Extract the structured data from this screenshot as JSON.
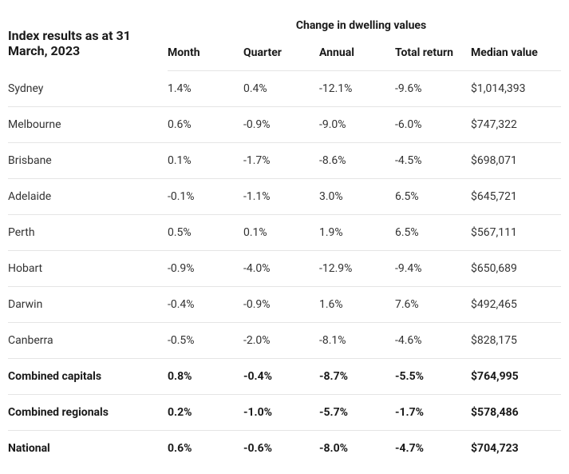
{
  "table": {
    "title": "Index results as at 31 March, 2023",
    "super_header": "Change in dwelling values",
    "columns": [
      "Month",
      "Quarter",
      "Annual",
      "Total return",
      "Median value"
    ],
    "rows": [
      {
        "label": "Sydney",
        "month": "1.4%",
        "quarter": "0.4%",
        "annual": "-12.1%",
        "total_return": "-9.6%",
        "median": "$1,014,393",
        "bold": false
      },
      {
        "label": "Melbourne",
        "month": "0.6%",
        "quarter": "-0.9%",
        "annual": "-9.0%",
        "total_return": "-6.0%",
        "median": "$747,322",
        "bold": false
      },
      {
        "label": "Brisbane",
        "month": "0.1%",
        "quarter": "-1.7%",
        "annual": "-8.6%",
        "total_return": "-4.5%",
        "median": "$698,071",
        "bold": false
      },
      {
        "label": "Adelaide",
        "month": "-0.1%",
        "quarter": "-1.1%",
        "annual": "3.0%",
        "total_return": "6.5%",
        "median": "$645,721",
        "bold": false
      },
      {
        "label": "Perth",
        "month": "0.5%",
        "quarter": "0.1%",
        "annual": "1.9%",
        "total_return": "6.5%",
        "median": "$567,111",
        "bold": false
      },
      {
        "label": "Hobart",
        "month": "-0.9%",
        "quarter": "-4.0%",
        "annual": "-12.9%",
        "total_return": "-9.4%",
        "median": "$650,689",
        "bold": false
      },
      {
        "label": "Darwin",
        "month": "-0.4%",
        "quarter": "-0.9%",
        "annual": "1.6%",
        "total_return": "7.6%",
        "median": "$492,465",
        "bold": false
      },
      {
        "label": "Canberra",
        "month": "-0.5%",
        "quarter": "-2.0%",
        "annual": "-8.1%",
        "total_return": "-4.6%",
        "median": "$828,175",
        "bold": false
      },
      {
        "label": "Combined capitals",
        "month": "0.8%",
        "quarter": "-0.4%",
        "annual": "-8.7%",
        "total_return": "-5.5%",
        "median": "$764,995",
        "bold": true
      },
      {
        "label": "Combined regionals",
        "month": "0.2%",
        "quarter": "-1.0%",
        "annual": "-5.7%",
        "total_return": "-1.7%",
        "median": "$578,486",
        "bold": true
      },
      {
        "label": "National",
        "month": "0.6%",
        "quarter": "-0.6%",
        "annual": "-8.0%",
        "total_return": "-4.7%",
        "median": "$704,723",
        "bold": true
      }
    ]
  }
}
